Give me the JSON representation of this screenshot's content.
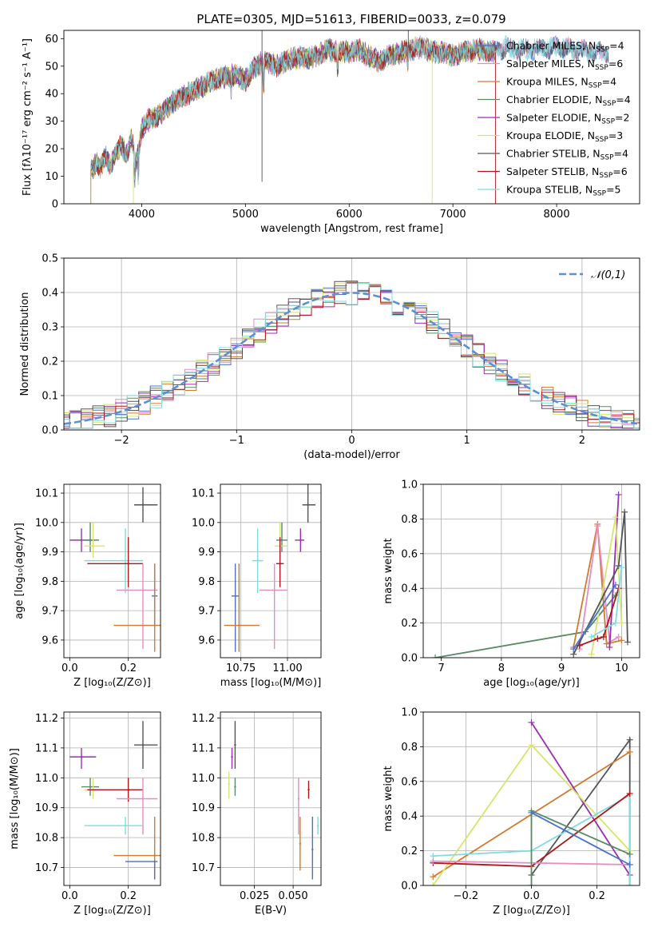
{
  "figure_title": "PLATE=0305, MJD=51613, FIBERID=0033, z=0.079",
  "colors": {
    "chabrier_miles": "#4a74c9",
    "salpeter_miles": "#e58cc1",
    "kroupa_miles": "#d07a2e",
    "chabrier_elodie": "#5a8a65",
    "salpeter_elodie": "#9b2fb3",
    "kroupa_elodie": "#d7e66a",
    "chabrier_stelib": "#555555",
    "salpeter_stelib": "#b0171a",
    "kroupa_stelib": "#7fdbe0",
    "gaussian": "#5b8fd6",
    "grid": "#b0b0b0"
  },
  "chart_data": [
    {
      "type": "line",
      "title": "PLATE=0305, MJD=51613, FIBERID=0033, z=0.079",
      "xlabel": "wavelength [Angstrom, rest frame]",
      "ylabel": "Flux [fλ10⁻¹⁷ erg cm⁻² s⁻¹ A⁻¹]",
      "xlim": [
        3250,
        8800
      ],
      "ylim": [
        0,
        63
      ],
      "xticks": [
        4000,
        5000,
        6000,
        7000,
        8000
      ],
      "yticks": [
        0,
        10,
        20,
        30,
        40,
        50,
        60
      ],
      "grid": false,
      "legend_position": "right",
      "series": [
        {
          "name": "Chabrier MILES, N_SSP=4"
        },
        {
          "name": "Salpeter MILES, N_SSP=6"
        },
        {
          "name": "Kroupa MILES, N_SSP=4"
        },
        {
          "name": "Chabrier ELODIE, N_SSP=4"
        },
        {
          "name": "Salpeter ELODIE, N_SSP=2"
        },
        {
          "name": "Kroupa ELODIE, N_SSP=3"
        },
        {
          "name": "Chabrier STELIB, N_SSP=4"
        },
        {
          "name": "Salpeter STELIB, N_SSP=6"
        },
        {
          "name": "Kroupa STELIB, N_SSP=5"
        }
      ],
      "spectrum_anchor_points": {
        "x": [
          3520,
          3560,
          3600,
          3650,
          3700,
          3760,
          3800,
          3860,
          3900,
          3950,
          4000,
          4050,
          4100,
          4200,
          4300,
          4400,
          4500,
          4600,
          4700,
          4800,
          4900,
          5000,
          5100,
          5200,
          5300,
          5400,
          5500,
          5600,
          5700,
          5800,
          5900,
          6000,
          6100,
          6200,
          6300,
          6400,
          6500,
          6600,
          6700,
          6800,
          6900,
          7000,
          7100,
          7200,
          7300,
          7400,
          7500,
          7600,
          7800,
          8000,
          8200,
          8400
        ],
        "y": [
          12,
          15,
          13,
          17,
          14,
          19,
          21,
          18,
          24,
          15,
          27,
          30,
          31,
          33,
          37,
          39,
          41,
          43,
          45,
          46,
          47,
          45,
          50,
          52,
          50,
          52,
          53,
          53,
          54,
          56,
          55,
          55,
          56,
          53,
          52,
          54,
          55,
          56,
          57,
          55,
          55,
          54,
          55,
          56,
          56,
          55,
          57,
          56,
          56,
          57,
          56,
          55
        ]
      }
    },
    {
      "type": "line",
      "xlabel": "(data-model)/error",
      "ylabel": "Normed distribution",
      "xlim": [
        -2.5,
        2.5
      ],
      "ylim": [
        0,
        0.5
      ],
      "xticks": [
        -2,
        -1,
        0,
        1,
        2
      ],
      "yticks": [
        0.0,
        0.1,
        0.2,
        0.3,
        0.4,
        0.5
      ],
      "grid": true,
      "legend_position": "top-right",
      "legend_label": "𝒩(0,1)",
      "histogram_bin_width": 0.1,
      "description": "normalized residual histograms for 9 models with unit normal curve"
    },
    {
      "type": "scatter",
      "xlabel": "Z [log₁₀(Z/Z⊙)]",
      "ylabel": "age  [log₁₀(age/yr)]",
      "xlim": [
        -0.02,
        0.31
      ],
      "ylim": [
        9.54,
        10.13
      ],
      "xticks": [
        0.0,
        0.2
      ],
      "yticks": [
        9.6,
        9.7,
        9.8,
        9.9,
        10.0,
        10.1
      ],
      "grid": true,
      "points": [
        {
          "model": "chabrier_stelib",
          "x": 0.25,
          "y": 10.06,
          "xlo": 0.22,
          "xhi": 0.3,
          "ylo": 10.0,
          "yhi": 10.12
        },
        {
          "model": "salpeter_elodie",
          "x": 0.04,
          "y": 9.94,
          "xlo": 0.0,
          "xhi": 0.08,
          "ylo": 9.9,
          "yhi": 9.98
        },
        {
          "model": "chabrier_elodie",
          "x": 0.07,
          "y": 9.94,
          "xlo": 0.04,
          "xhi": 0.1,
          "ylo": 9.9,
          "yhi": 10.0
        },
        {
          "model": "kroupa_elodie",
          "x": 0.08,
          "y": 9.92,
          "xlo": 0.05,
          "xhi": 0.12,
          "ylo": 9.88,
          "yhi": 10.0
        },
        {
          "model": "kroupa_stelib",
          "x": 0.19,
          "y": 9.87,
          "xlo": 0.05,
          "xhi": 0.25,
          "ylo": 9.76,
          "yhi": 9.98
        },
        {
          "model": "salpeter_stelib",
          "x": 0.2,
          "y": 9.86,
          "xlo": 0.06,
          "xhi": 0.25,
          "ylo": 9.78,
          "yhi": 9.95
        },
        {
          "model": "salpeter_miles",
          "x": 0.25,
          "y": 9.77,
          "xlo": 0.16,
          "xhi": 0.3,
          "ylo": 9.57,
          "yhi": 9.86
        },
        {
          "model": "chabrier_miles",
          "x": 0.29,
          "y": 9.75,
          "xlo": 0.28,
          "xhi": 0.3,
          "ylo": 9.65,
          "yhi": 9.86
        },
        {
          "model": "kroupa_miles",
          "x": 0.29,
          "y": 9.65,
          "xlo": 0.15,
          "xhi": 0.31,
          "ylo": 9.56,
          "yhi": 9.86
        }
      ]
    },
    {
      "type": "scatter",
      "xlabel": "mass [log₁₀(M/M⊙)]",
      "ylabel": "",
      "xlim": [
        10.64,
        11.18
      ],
      "ylim": [
        9.54,
        10.13
      ],
      "xticks": [
        10.75,
        11.0
      ],
      "yticks": [
        9.6,
        9.7,
        9.8,
        9.9,
        10.0,
        10.1
      ],
      "grid": true,
      "points": [
        {
          "model": "chabrier_stelib",
          "x": 11.11,
          "y": 10.06,
          "xlo": 11.08,
          "xhi": 11.15,
          "ylo": 10.0,
          "yhi": 10.13
        },
        {
          "model": "salpeter_elodie",
          "x": 11.07,
          "y": 9.94,
          "xlo": 11.04,
          "xhi": 11.09,
          "ylo": 9.9,
          "yhi": 9.98
        },
        {
          "model": "chabrier_elodie",
          "x": 10.97,
          "y": 9.94,
          "xlo": 10.94,
          "xhi": 11.0,
          "ylo": 9.9,
          "yhi": 10.0
        },
        {
          "model": "kroupa_elodie",
          "x": 10.96,
          "y": 9.92,
          "xlo": 10.93,
          "xhi": 11.0,
          "ylo": 9.88,
          "yhi": 10.0
        },
        {
          "model": "kroupa_stelib",
          "x": 10.84,
          "y": 9.87,
          "xlo": 10.81,
          "xhi": 10.87,
          "ylo": 9.76,
          "yhi": 9.98
        },
        {
          "model": "salpeter_stelib",
          "x": 10.96,
          "y": 9.86,
          "xlo": 10.94,
          "xhi": 10.98,
          "ylo": 9.78,
          "yhi": 9.95
        },
        {
          "model": "salpeter_miles",
          "x": 10.93,
          "y": 9.77,
          "xlo": 10.85,
          "xhi": 11.0,
          "ylo": 9.57,
          "yhi": 9.86
        },
        {
          "model": "chabrier_miles",
          "x": 10.72,
          "y": 9.75,
          "xlo": 10.7,
          "xhi": 10.74,
          "ylo": 9.56,
          "yhi": 9.86
        },
        {
          "model": "kroupa_miles",
          "x": 10.74,
          "y": 9.65,
          "xlo": 10.66,
          "xhi": 10.85,
          "ylo": 9.56,
          "yhi": 9.86
        }
      ]
    },
    {
      "type": "line",
      "xlabel": "age  [log₁₀(age/yr)]",
      "ylabel": "mass weight",
      "xlim": [
        6.7,
        10.3
      ],
      "ylim": [
        0,
        1.0
      ],
      "xticks": [
        7,
        8,
        9,
        10
      ],
      "yticks": [
        0.0,
        0.2,
        0.4,
        0.6,
        0.8,
        1.0
      ],
      "grid": true,
      "series": [
        {
          "model": "chabrier_elodie",
          "x": [
            6.9,
            9.4,
            9.9
          ],
          "y": [
            0.0,
            0.15,
            0.36
          ]
        },
        {
          "model": "kroupa_miles",
          "x": [
            9.2,
            9.6,
            9.75,
            10.0
          ],
          "y": [
            0.06,
            0.77,
            0.08,
            0.1
          ]
        },
        {
          "model": "salpeter_miles",
          "x": [
            9.3,
            9.6,
            9.8,
            9.95
          ],
          "y": [
            0.05,
            0.76,
            0.09,
            0.12
          ]
        },
        {
          "model": "salpeter_elodie",
          "x": [
            9.8,
            9.95
          ],
          "y": [
            0.06,
            0.94
          ]
        },
        {
          "model": "kroupa_elodie",
          "x": [
            9.5,
            9.9,
            10.0
          ],
          "y": [
            0.02,
            0.81,
            0.2
          ]
        },
        {
          "model": "chabrier_stelib",
          "x": [
            9.2,
            9.95,
            10.05,
            10.1
          ],
          "y": [
            0.02,
            0.53,
            0.84,
            0.09
          ]
        },
        {
          "model": "salpeter_stelib",
          "x": [
            9.3,
            9.6,
            9.7,
            9.95
          ],
          "y": [
            0.07,
            0.11,
            0.12,
            0.4
          ]
        },
        {
          "model": "kroupa_stelib",
          "x": [
            9.5,
            9.9,
            10.0
          ],
          "y": [
            0.12,
            0.2,
            0.52
          ]
        },
        {
          "model": "chabrier_miles",
          "x": [
            9.2,
            9.9
          ],
          "y": [
            0.05,
            0.42
          ]
        }
      ]
    },
    {
      "type": "scatter",
      "xlabel": "Z [log₁₀(Z/Z⊙)]",
      "ylabel": "mass [log₁₀(M/M⊙)]",
      "xlim": [
        -0.02,
        0.31
      ],
      "ylim": [
        10.64,
        11.22
      ],
      "xticks": [
        0.0,
        0.2
      ],
      "yticks": [
        10.7,
        10.8,
        10.9,
        11.0,
        11.1,
        11.2
      ],
      "grid": true,
      "points": [
        {
          "model": "chabrier_stelib",
          "x": 0.25,
          "y": 11.11,
          "xlo": 0.22,
          "xhi": 0.3,
          "ylo": 11.03,
          "yhi": 11.19
        },
        {
          "model": "salpeter_elodie",
          "x": 0.04,
          "y": 11.07,
          "xlo": 0.0,
          "xhi": 0.09,
          "ylo": 11.03,
          "yhi": 11.1
        },
        {
          "model": "chabrier_elodie",
          "x": 0.07,
          "y": 10.97,
          "xlo": 0.04,
          "xhi": 0.1,
          "ylo": 10.94,
          "yhi": 11.0
        },
        {
          "model": "kroupa_elodie",
          "x": 0.08,
          "y": 10.96,
          "xlo": 0.05,
          "xhi": 0.12,
          "ylo": 10.93,
          "yhi": 11.0
        },
        {
          "model": "salpeter_stelib",
          "x": 0.2,
          "y": 10.96,
          "xlo": 0.06,
          "xhi": 0.25,
          "ylo": 10.92,
          "yhi": 11.0
        },
        {
          "model": "salpeter_miles",
          "x": 0.25,
          "y": 10.93,
          "xlo": 0.16,
          "xhi": 0.3,
          "ylo": 10.81,
          "yhi": 11.0
        },
        {
          "model": "kroupa_stelib",
          "x": 0.19,
          "y": 10.84,
          "xlo": 0.05,
          "xhi": 0.25,
          "ylo": 10.81,
          "yhi": 10.87
        },
        {
          "model": "kroupa_miles",
          "x": 0.29,
          "y": 10.74,
          "xlo": 0.15,
          "xhi": 0.31,
          "ylo": 10.66,
          "yhi": 10.87
        },
        {
          "model": "chabrier_miles",
          "x": 0.29,
          "y": 10.72,
          "xlo": 0.19,
          "xhi": 0.3,
          "ylo": 10.66,
          "yhi": 10.72
        }
      ]
    },
    {
      "type": "scatter",
      "xlabel": "E(B-V)",
      "ylabel": "",
      "xlim": [
        0.003,
        0.068
      ],
      "ylim": [
        10.64,
        11.22
      ],
      "xticks": [
        0.025,
        0.05
      ],
      "yticks": [
        10.7,
        10.8,
        10.9,
        11.0,
        11.1,
        11.2
      ],
      "grid": true,
      "points": [
        {
          "model": "chabrier_stelib",
          "x": 0.0125,
          "y": 11.11,
          "ylo": 11.03,
          "yhi": 11.19
        },
        {
          "model": "salpeter_elodie",
          "x": 0.0105,
          "y": 11.07,
          "ylo": 11.03,
          "yhi": 11.1
        },
        {
          "model": "chabrier_elodie",
          "x": 0.0125,
          "y": 10.97,
          "ylo": 10.94,
          "yhi": 11.0
        },
        {
          "model": "kroupa_elodie",
          "x": 0.0085,
          "y": 10.98,
          "ylo": 10.93,
          "yhi": 11.02
        },
        {
          "model": "salpeter_stelib",
          "x": 0.06,
          "y": 10.96,
          "ylo": 10.93,
          "yhi": 10.99
        },
        {
          "model": "salpeter_miles",
          "x": 0.0535,
          "y": 10.93,
          "ylo": 10.81,
          "yhi": 11.0
        },
        {
          "model": "kroupa_stelib",
          "x": 0.066,
          "y": 10.84,
          "ylo": 10.81,
          "yhi": 10.87
        },
        {
          "model": "kroupa_miles",
          "x": 0.0545,
          "y": 10.78,
          "ylo": 10.69,
          "yhi": 10.87
        },
        {
          "model": "chabrier_miles",
          "x": 0.0625,
          "y": 10.76,
          "ylo": 10.66,
          "yhi": 10.87
        }
      ]
    },
    {
      "type": "line",
      "xlabel": "Z [log₁₀(Z/Z⊙)]",
      "ylabel": "mass weight",
      "xlim": [
        -0.33,
        0.33
      ],
      "ylim": [
        0,
        1.0
      ],
      "xticks": [
        -0.2,
        0.0,
        0.2
      ],
      "yticks": [
        0.0,
        0.2,
        0.4,
        0.6,
        0.8,
        1.0
      ],
      "grid": true,
      "series": [
        {
          "model": "chabrier_stelib",
          "x": [
            0.0,
            0.3,
            0.3
          ],
          "y": [
            0.06,
            0.84,
            0.0
          ]
        },
        {
          "model": "kroupa_miles",
          "x": [
            -0.3,
            0.3
          ],
          "y": [
            0.05,
            0.77
          ]
        },
        {
          "model": "salpeter_elodie",
          "x": [
            0.0,
            0.3
          ],
          "y": [
            0.94,
            0.06
          ]
        },
        {
          "model": "kroupa_elodie",
          "x": [
            -0.3,
            0.0,
            0.3
          ],
          "y": [
            0.0,
            0.81,
            0.2
          ]
        },
        {
          "model": "kroupa_stelib",
          "x": [
            -0.3,
            0.0,
            0.3,
            0.3
          ],
          "y": [
            0.17,
            0.2,
            0.52,
            0.0
          ]
        },
        {
          "model": "salpeter_stelib",
          "x": [
            -0.3,
            0.0,
            0.3
          ],
          "y": [
            0.13,
            0.11,
            0.53
          ]
        },
        {
          "model": "salpeter_miles",
          "x": [
            -0.3,
            0.3
          ],
          "y": [
            0.14,
            0.12
          ]
        },
        {
          "model": "chabrier_elodie",
          "x": [
            0.0,
            0.0,
            0.3
          ],
          "y": [
            0.0,
            0.43,
            0.18
          ]
        },
        {
          "model": "chabrier_miles",
          "x": [
            0.0,
            0.3
          ],
          "y": [
            0.42,
            0.12
          ]
        }
      ]
    }
  ],
  "legend": [
    {
      "key": "chabrier_miles",
      "base": "Chabrier MILES, N",
      "sub": "SSP",
      "tail": "=4"
    },
    {
      "key": "salpeter_miles",
      "base": "Salpeter MILES, N",
      "sub": "SSP",
      "tail": "=6"
    },
    {
      "key": "kroupa_miles",
      "base": "Kroupa MILES, N",
      "sub": "SSP",
      "tail": "=4"
    },
    {
      "key": "chabrier_elodie",
      "base": "Chabrier ELODIE, N",
      "sub": "SSP",
      "tail": "=4"
    },
    {
      "key": "salpeter_elodie",
      "base": "Salpeter ELODIE, N",
      "sub": "SSP",
      "tail": "=2"
    },
    {
      "key": "kroupa_elodie",
      "base": "Kroupa ELODIE, N",
      "sub": "SSP",
      "tail": "=3"
    },
    {
      "key": "chabrier_stelib",
      "base": "Chabrier STELIB, N",
      "sub": "SSP",
      "tail": "=4"
    },
    {
      "key": "salpeter_stelib",
      "base": "Salpeter STELIB, N",
      "sub": "SSP",
      "tail": "=6"
    },
    {
      "key": "kroupa_stelib",
      "base": "Kroupa STELIB, N",
      "sub": "SSP",
      "tail": "=5"
    }
  ]
}
